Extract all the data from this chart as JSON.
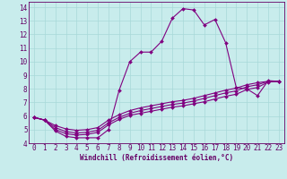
{
  "xlabel": "Windchill (Refroidissement éolien,°C)",
  "xlim": [
    -0.5,
    23.5
  ],
  "ylim": [
    4,
    14.4
  ],
  "xticks": [
    0,
    1,
    2,
    3,
    4,
    5,
    6,
    7,
    8,
    9,
    10,
    11,
    12,
    13,
    14,
    15,
    16,
    17,
    18,
    19,
    20,
    21,
    22,
    23
  ],
  "yticks": [
    4,
    5,
    6,
    7,
    8,
    9,
    10,
    11,
    12,
    13,
    14
  ],
  "bg_color": "#c8ecec",
  "grid_color": "#a8d8d8",
  "line_color": "#800080",
  "lines": [
    {
      "x": [
        0,
        1,
        2,
        3,
        4,
        5,
        6,
        7,
        8,
        9,
        10,
        11,
        12,
        13,
        14,
        15,
        16,
        17,
        18,
        19,
        20,
        21,
        22,
        23
      ],
      "y": [
        5.9,
        5.7,
        4.9,
        4.5,
        4.4,
        4.4,
        4.4,
        5.0,
        7.9,
        10.0,
        10.7,
        10.7,
        11.5,
        13.2,
        13.9,
        13.8,
        12.7,
        13.1,
        11.4,
        8.1,
        8.0,
        7.5,
        8.6,
        8.55
      ]
    },
    {
      "x": [
        0,
        1,
        2,
        3,
        4,
        5,
        6,
        7,
        8,
        9,
        10,
        11,
        12,
        13,
        14,
        15,
        16,
        17,
        18,
        19,
        20,
        21,
        22,
        23
      ],
      "y": [
        5.9,
        5.7,
        5.0,
        4.7,
        4.6,
        4.65,
        4.8,
        5.35,
        5.75,
        6.05,
        6.2,
        6.35,
        6.5,
        6.65,
        6.75,
        6.9,
        7.05,
        7.25,
        7.45,
        7.6,
        7.95,
        8.1,
        8.5,
        8.55
      ]
    },
    {
      "x": [
        0,
        1,
        2,
        3,
        4,
        5,
        6,
        7,
        8,
        9,
        10,
        11,
        12,
        13,
        14,
        15,
        16,
        17,
        18,
        19,
        20,
        21,
        22,
        23
      ],
      "y": [
        5.9,
        5.7,
        5.15,
        4.85,
        4.75,
        4.8,
        4.95,
        5.5,
        5.9,
        6.2,
        6.4,
        6.55,
        6.7,
        6.85,
        6.95,
        7.1,
        7.3,
        7.5,
        7.7,
        7.85,
        8.15,
        8.3,
        8.55,
        8.55
      ]
    },
    {
      "x": [
        0,
        1,
        2,
        3,
        4,
        5,
        6,
        7,
        8,
        9,
        10,
        11,
        12,
        13,
        14,
        15,
        16,
        17,
        18,
        19,
        20,
        21,
        22,
        23
      ],
      "y": [
        5.9,
        5.7,
        5.3,
        5.05,
        4.95,
        5.0,
        5.15,
        5.7,
        6.1,
        6.4,
        6.6,
        6.75,
        6.9,
        7.05,
        7.15,
        7.3,
        7.5,
        7.7,
        7.9,
        8.05,
        8.3,
        8.45,
        8.55,
        8.55
      ]
    }
  ],
  "tick_fontsize": 5.5,
  "xlabel_fontsize": 5.5,
  "tick_color": "#660066",
  "xlabel_color": "#660066"
}
